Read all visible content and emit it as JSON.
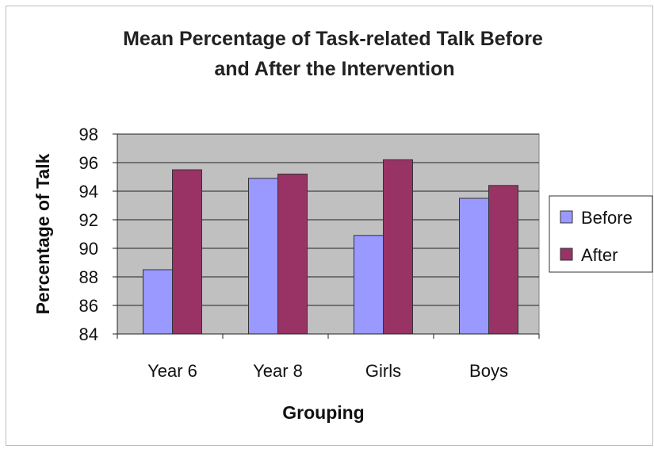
{
  "chart_data": {
    "type": "bar",
    "title": [
      "Mean Percentage of Task-related Talk Before",
      "and After the Intervention"
    ],
    "xlabel": "Grouping",
    "ylabel": "Percentage of Talk",
    "categories": [
      "Year 6",
      "Year 8",
      "Girls",
      "Boys"
    ],
    "ylim": [
      84,
      98
    ],
    "yticks": [
      98,
      96,
      94,
      92,
      90,
      88,
      86,
      84
    ],
    "grid": true,
    "legend_position": "right",
    "series": [
      {
        "name": "Before",
        "values": [
          88.5,
          94.9,
          90.9,
          93.5
        ],
        "color": "#9999ff"
      },
      {
        "name": "After",
        "values": [
          95.5,
          95.2,
          96.2,
          94.4
        ],
        "color": "#993366"
      }
    ],
    "plot_background": "#c0c0c0"
  }
}
